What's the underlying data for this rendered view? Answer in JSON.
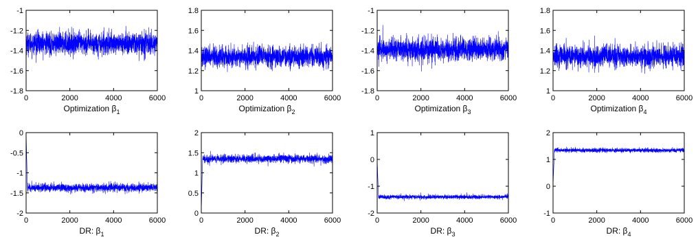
{
  "figure": {
    "background": "#ffffff",
    "line_color": "#0000ff"
  },
  "chart_data": [
    {
      "type": "line",
      "title": "",
      "ylabel": "",
      "xlabel_main": "Optimization β",
      "xlabel_sub": "1",
      "xlim": [
        0,
        6000
      ],
      "ylim": [
        -1.8,
        -1
      ],
      "xticks": [
        "0",
        "2000",
        "4000",
        "6000"
      ],
      "yticks": [
        "-1.8",
        "-1.6",
        "-1.4",
        "-1.2",
        "-1"
      ],
      "series": [
        {
          "n_samples": 6000,
          "mean": -1.33,
          "noise_sd": 0.055,
          "transient": null
        }
      ]
    },
    {
      "type": "line",
      "title": "",
      "ylabel": "",
      "xlabel_main": "Optimization β",
      "xlabel_sub": "2",
      "xlim": [
        0,
        6000
      ],
      "ylim": [
        1,
        1.8
      ],
      "xticks": [
        "0",
        "2000",
        "4000",
        "6000"
      ],
      "yticks": [
        "1",
        "1.2",
        "1.4",
        "1.6",
        "1.8"
      ],
      "series": [
        {
          "n_samples": 6000,
          "mean": 1.34,
          "noise_sd": 0.05,
          "transient": null
        }
      ]
    },
    {
      "type": "line",
      "title": "",
      "ylabel": "",
      "xlabel_main": "Optimization β",
      "xlabel_sub": "3",
      "xlim": [
        0,
        6000
      ],
      "ylim": [
        -1.8,
        -1
      ],
      "xticks": [
        "0",
        "2000",
        "4000",
        "6000"
      ],
      "yticks": [
        "-1.8",
        "-1.6",
        "-1.4",
        "-1.2",
        "-1"
      ],
      "series": [
        {
          "n_samples": 6000,
          "mean": -1.39,
          "noise_sd": 0.055,
          "transient": null
        }
      ]
    },
    {
      "type": "line",
      "title": "",
      "ylabel": "",
      "xlabel_main": "Optimization β",
      "xlabel_sub": "4",
      "xlim": [
        0,
        6000
      ],
      "ylim": [
        1,
        1.8
      ],
      "xticks": [
        "0",
        "2000",
        "4000",
        "6000"
      ],
      "yticks": [
        "1",
        "1.2",
        "1.4",
        "1.6",
        "1.8"
      ],
      "series": [
        {
          "n_samples": 6000,
          "mean": 1.34,
          "noise_sd": 0.055,
          "transient": null
        }
      ]
    },
    {
      "type": "line",
      "title": "",
      "ylabel": "",
      "xlabel_main": "DR: β",
      "xlabel_sub": "1",
      "xlim": [
        0,
        6000
      ],
      "ylim": [
        -2,
        0
      ],
      "xticks": [
        "0",
        "2000",
        "4000",
        "6000"
      ],
      "yticks": [
        "-2",
        "-1.5",
        "-1",
        "-0.5",
        "0"
      ],
      "series": [
        {
          "n_samples": 6000,
          "mean": -1.37,
          "noise_sd": 0.05,
          "transient": {
            "start": 0,
            "length": 60
          }
        }
      ]
    },
    {
      "type": "line",
      "title": "",
      "ylabel": "",
      "xlabel_main": "DR: β",
      "xlabel_sub": "2",
      "xlim": [
        0,
        6000
      ],
      "ylim": [
        0,
        2
      ],
      "xticks": [
        "0",
        "2000",
        "4000",
        "6000"
      ],
      "yticks": [
        "0",
        "0.5",
        "1",
        "1.5",
        "2"
      ],
      "series": [
        {
          "n_samples": 6000,
          "mean": 1.35,
          "noise_sd": 0.05,
          "transient": {
            "start": 0,
            "length": 60
          }
        }
      ]
    },
    {
      "type": "line",
      "title": "",
      "ylabel": "",
      "xlabel_main": "DR: β",
      "xlabel_sub": "3",
      "xlim": [
        0,
        6000
      ],
      "ylim": [
        -2,
        1
      ],
      "xticks": [
        "0",
        "2000",
        "4000",
        "6000"
      ],
      "yticks": [
        "-2",
        "-1",
        "0",
        "1"
      ],
      "series": [
        {
          "n_samples": 6000,
          "mean": -1.4,
          "noise_sd": 0.04,
          "transient": {
            "start": 0,
            "length": 60
          }
        }
      ]
    },
    {
      "type": "line",
      "title": "",
      "ylabel": "",
      "xlabel_main": "DR: β",
      "xlabel_sub": "4",
      "xlim": [
        0,
        6000
      ],
      "ylim": [
        -1,
        2
      ],
      "xticks": [
        "0",
        "2000",
        "4000",
        "6000"
      ],
      "yticks": [
        "-1",
        "0",
        "1",
        "2"
      ],
      "series": [
        {
          "n_samples": 6000,
          "mean": 1.34,
          "noise_sd": 0.04,
          "transient": {
            "start": 0,
            "length": 60
          }
        }
      ]
    }
  ]
}
